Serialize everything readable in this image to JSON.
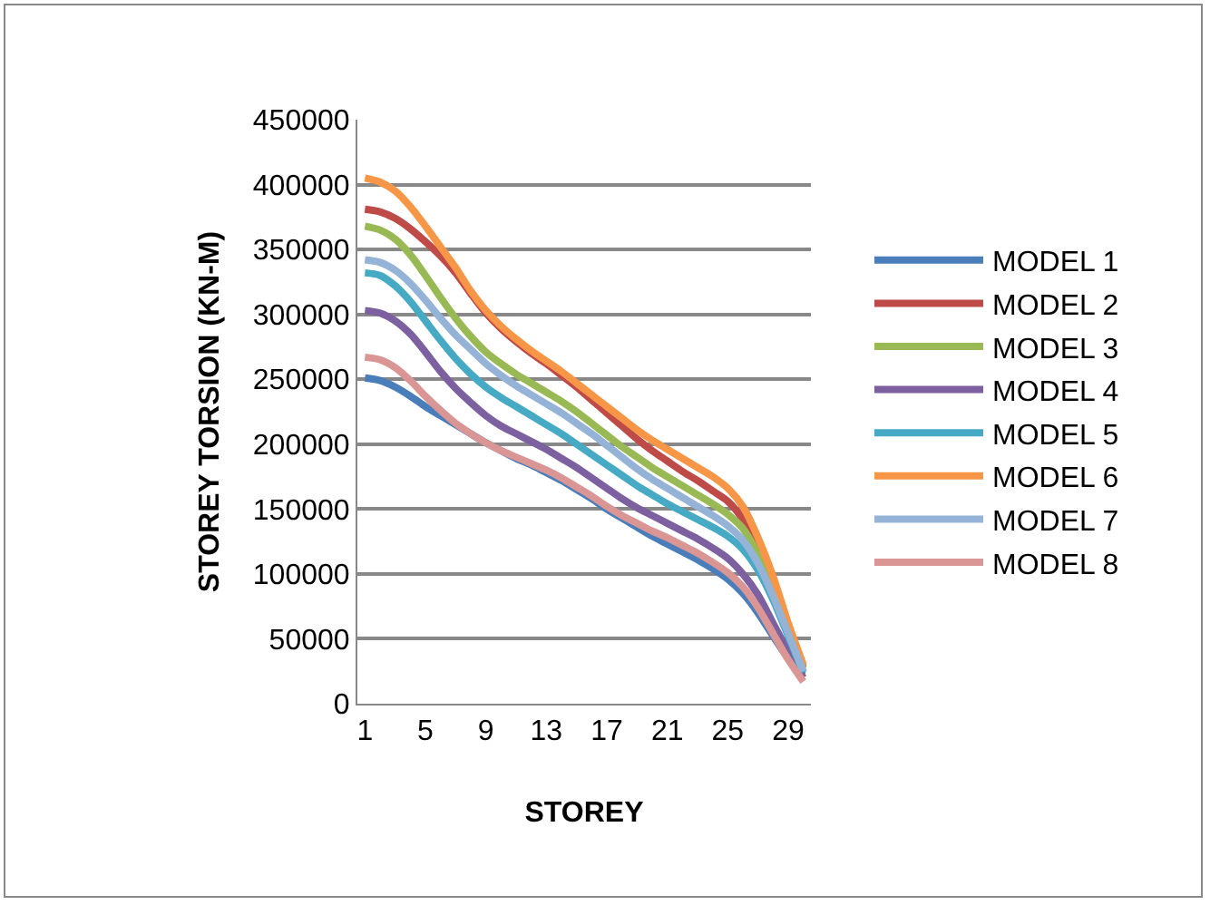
{
  "chart_data": {
    "type": "line",
    "xlabel": "STOREY",
    "ylabel": "STOREY TORSION (KN-M)",
    "categories": [
      "1",
      null,
      null,
      null,
      "5",
      null,
      null,
      null,
      "9",
      null,
      null,
      null,
      "13",
      null,
      null,
      null,
      "17",
      null,
      null,
      null,
      "21",
      null,
      null,
      null,
      "25",
      null,
      null,
      null,
      "29",
      null
    ],
    "ylim": [
      0,
      450000
    ],
    "yticks": [
      0,
      50000,
      100000,
      150000,
      200000,
      250000,
      300000,
      350000,
      400000,
      450000
    ],
    "grid": "y",
    "legend": "right",
    "marker": "none",
    "line_style": "solid",
    "series": [
      {
        "name": "MODEL 1",
        "color": "#4a7ebb",
        "values": [
          251000,
          249000,
          244000,
          237000,
          229000,
          222000,
          215000,
          208000,
          201000,
          195000,
          189000,
          184000,
          178000,
          172000,
          165000,
          158000,
          150000,
          143000,
          136000,
          129000,
          123000,
          117000,
          111000,
          104000,
          96000,
          85000,
          70000,
          52000,
          35000,
          22000
        ]
      },
      {
        "name": "MODEL 2",
        "color": "#be4b48",
        "values": [
          381000,
          379000,
          374000,
          366000,
          356000,
          345000,
          332000,
          316000,
          301000,
          289000,
          279000,
          270000,
          262000,
          253000,
          244000,
          234000,
          224000,
          214000,
          204000,
          195000,
          187000,
          179000,
          172000,
          164000,
          156000,
          142000,
          120000,
          92000,
          58000,
          28000
        ]
      },
      {
        "name": "MODEL 3",
        "color": "#98b954",
        "values": [
          368000,
          365000,
          358000,
          346000,
          330000,
          313000,
          297000,
          283000,
          271000,
          262000,
          254000,
          247000,
          240000,
          233000,
          225000,
          216000,
          207000,
          198000,
          190000,
          182000,
          175000,
          168000,
          161000,
          154000,
          146000,
          135000,
          115000,
          88000,
          56000,
          27000
        ]
      },
      {
        "name": "MODEL 4",
        "color": "#7d60a0",
        "values": [
          303000,
          301000,
          295000,
          285000,
          271000,
          256000,
          243000,
          232000,
          222000,
          214000,
          208000,
          202000,
          196000,
          189000,
          182000,
          174000,
          166000,
          158000,
          151000,
          145000,
          139000,
          133000,
          127000,
          120000,
          112000,
          100000,
          84000,
          62000,
          40000,
          20000
        ]
      },
      {
        "name": "MODEL 5",
        "color": "#46aac5",
        "values": [
          332000,
          330000,
          322000,
          310000,
          295000,
          280000,
          266000,
          254000,
          244000,
          236000,
          229000,
          222000,
          215000,
          208000,
          200000,
          192000,
          184000,
          176000,
          168000,
          161000,
          154000,
          148000,
          142000,
          136000,
          129000,
          119000,
          103000,
          80000,
          52000,
          24000
        ]
      },
      {
        "name": "MODEL 6",
        "color": "#f79646",
        "values": [
          405000,
          402000,
          395000,
          383000,
          368000,
          352000,
          336000,
          318000,
          303000,
          291000,
          281000,
          272000,
          264000,
          256000,
          247000,
          238000,
          229000,
          220000,
          211000,
          203000,
          196000,
          189000,
          182000,
          175000,
          166000,
          152000,
          128000,
          98000,
          62000,
          30000
        ]
      },
      {
        "name": "MODEL 7",
        "color": "#95b3d7",
        "values": [
          342000,
          340000,
          334000,
          324000,
          311000,
          297000,
          284000,
          273000,
          262000,
          253000,
          245000,
          238000,
          231000,
          224000,
          216000,
          208000,
          199000,
          190000,
          181000,
          173000,
          166000,
          159000,
          152000,
          145000,
          137000,
          126000,
          108000,
          83000,
          54000,
          25000
        ]
      },
      {
        "name": "MODEL 8",
        "color": "#d99694",
        "values": [
          267000,
          265000,
          259000,
          249000,
          237000,
          226000,
          216000,
          208000,
          201000,
          195000,
          190000,
          185000,
          180000,
          174000,
          167000,
          160000,
          152000,
          145000,
          139000,
          133000,
          128000,
          122000,
          116000,
          109000,
          101000,
          90000,
          74000,
          54000,
          34000,
          17000
        ]
      }
    ]
  }
}
